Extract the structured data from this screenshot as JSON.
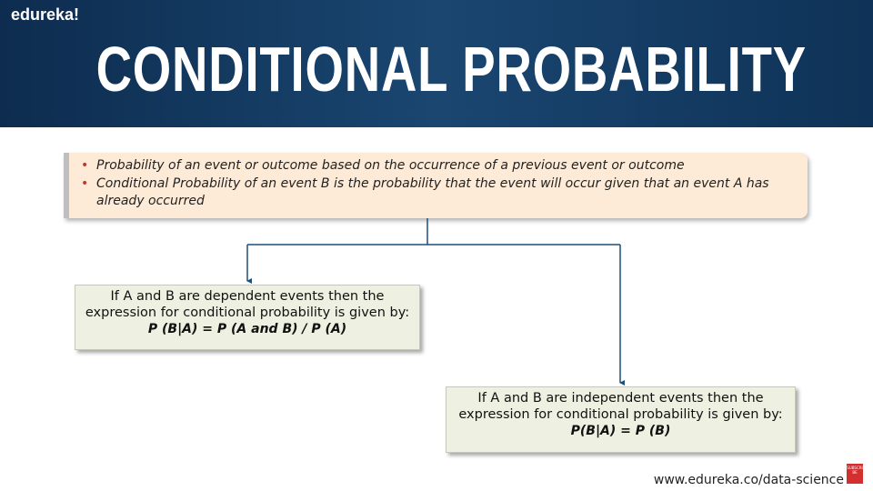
{
  "brand": "edureka!",
  "title": "CONDITIONAL PROBABILITY",
  "bullets": [
    "Probability of an event or outcome based on the occurrence of a previous event or outcome",
    "Conditional Probability of an event B is the probability that the event will occur given that an event A has already occurred"
  ],
  "boxes": [
    {
      "text": "If  A and B are dependent events then the expression for conditional probability is given by:",
      "formula": "P (B|A) = P (A and B)  / P (A)"
    },
    {
      "text": "If  A and B are independent events then the expression for conditional probability is given by:",
      "formula": "P(B|A) = P (B)"
    }
  ],
  "footer": {
    "url": "www.edureka.co/data-science",
    "badge": "SUBSCRIBE"
  }
}
